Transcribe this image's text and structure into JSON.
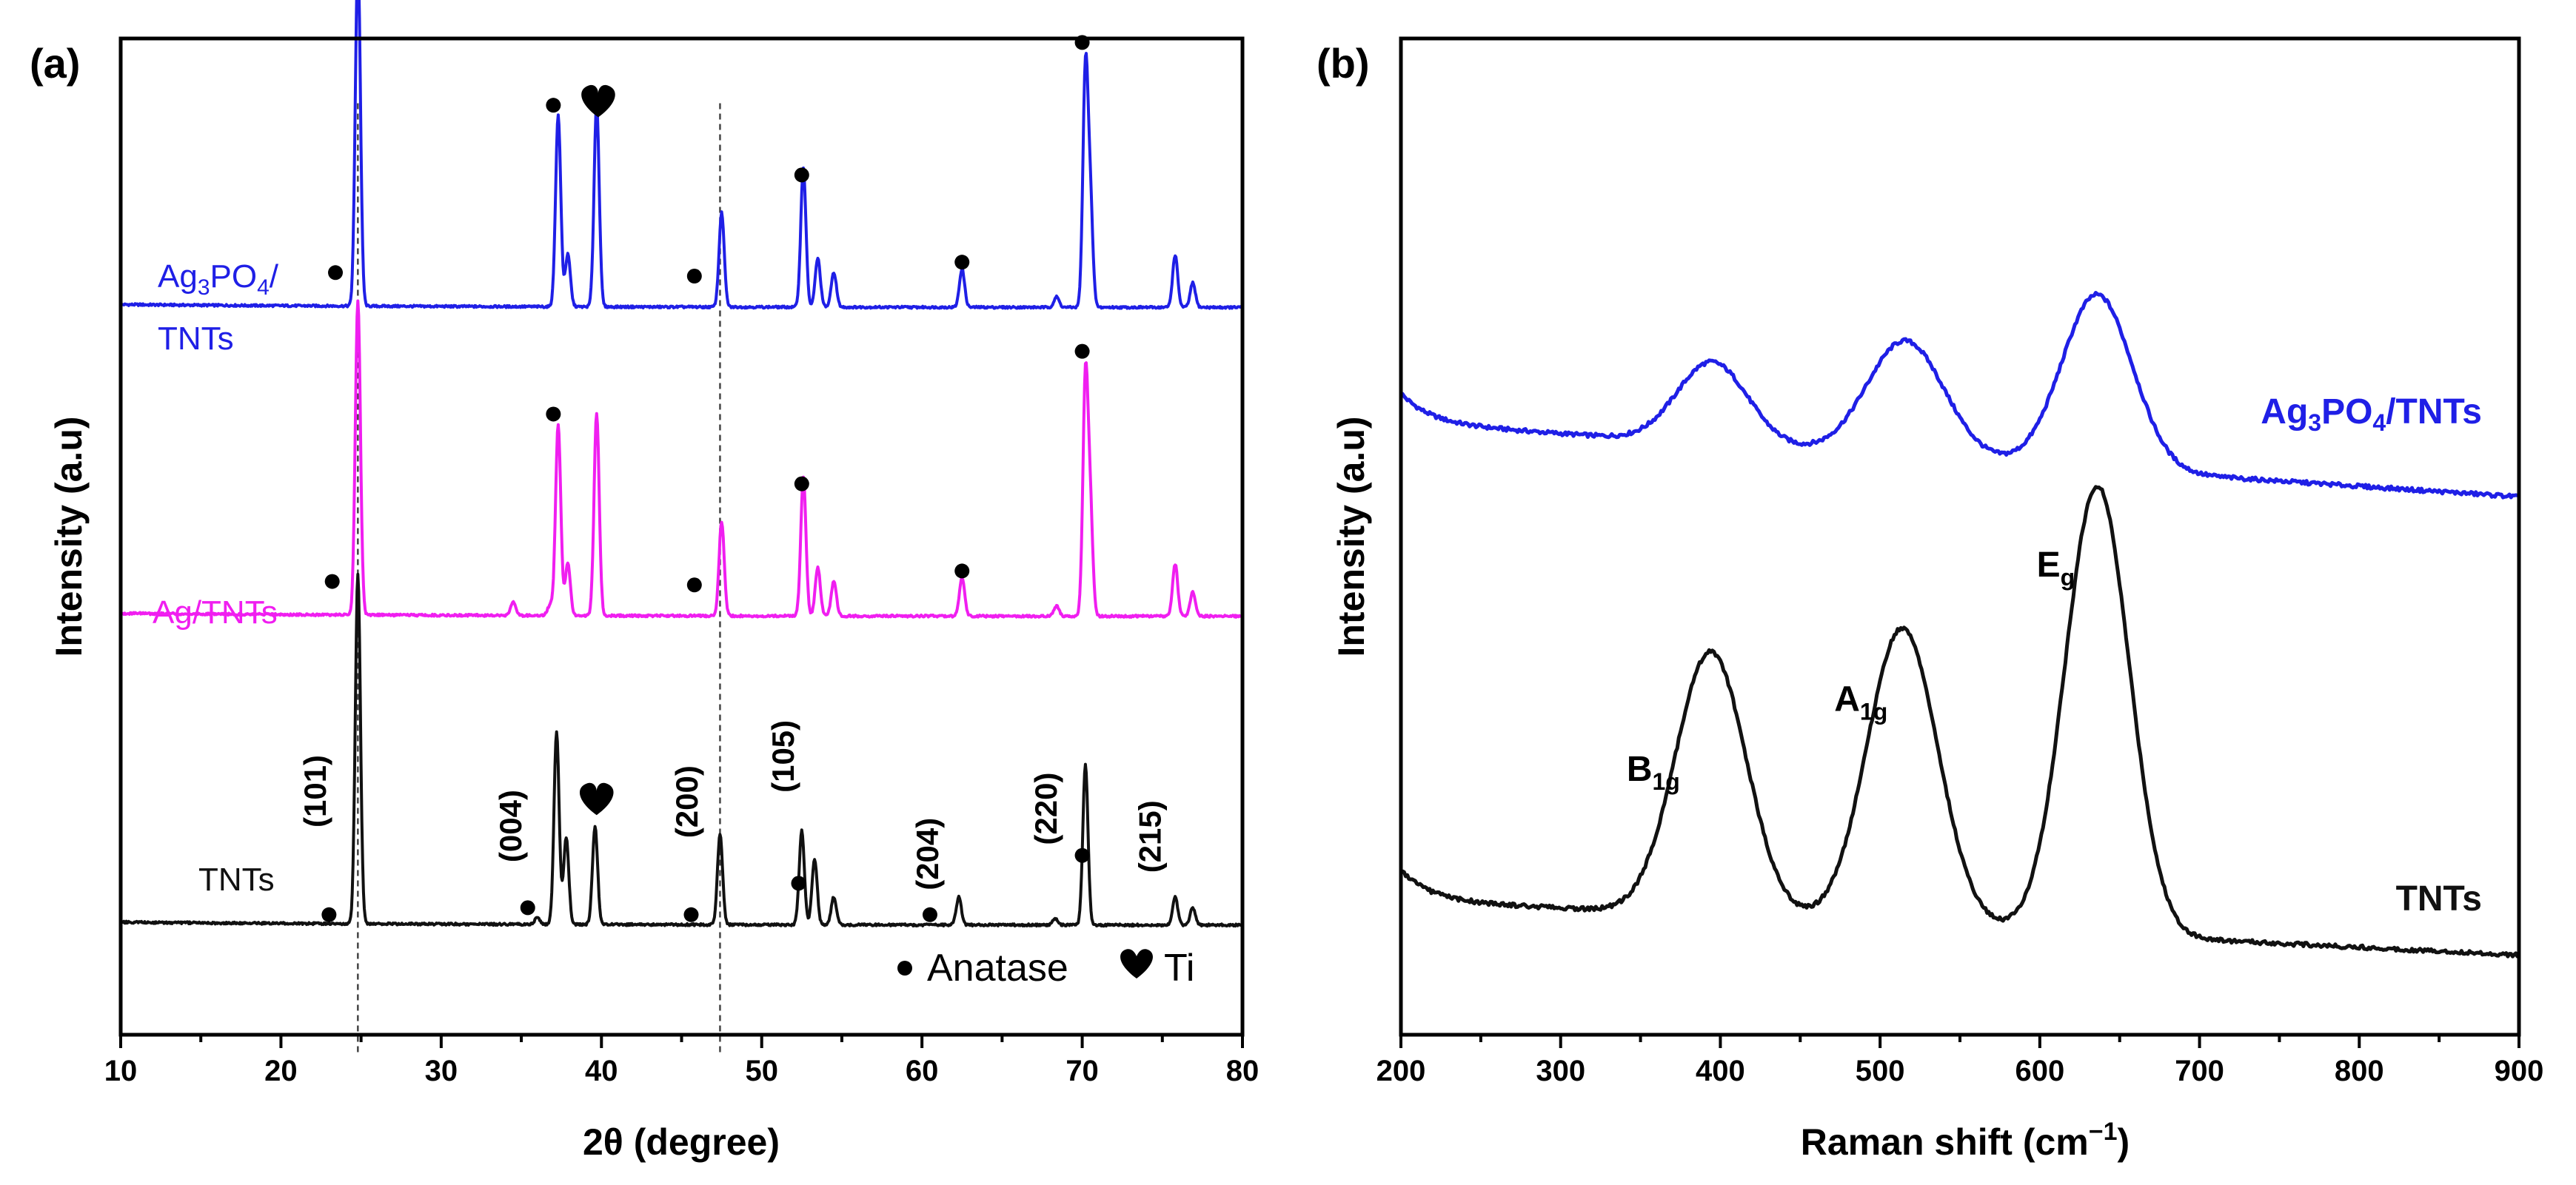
{
  "figure": {
    "background": "#ffffff"
  },
  "chart_data": [
    {
      "id": "a",
      "panel_label": "(a)",
      "type": "line",
      "xlabel": "2θ (degree)",
      "ylabel": "Intensity (a.u)",
      "xlim": [
        10,
        80
      ],
      "xticks": [
        10,
        20,
        30,
        40,
        50,
        60,
        70,
        80
      ],
      "reference_lines_x": [
        24.8,
        47.4
      ],
      "legend": {
        "placement": "bottom-right",
        "anatase_label": "Anatase",
        "ti_label": "Ti"
      },
      "series": [
        {
          "name": "Ag3PO4/TNTs",
          "label_line1": "Ag",
          "label_sub1": "3",
          "label_mid": "PO",
          "label_sub2": "4",
          "label_tail": "/",
          "label_line2": "TNTs",
          "color": "#1f1fe6",
          "offset": 0.73,
          "peaks": [
            [
              24.8,
              1.0
            ],
            [
              37.3,
              0.55
            ],
            [
              37.9,
              0.15
            ],
            [
              39.7,
              0.58
            ],
            [
              47.5,
              0.27
            ],
            [
              52.6,
              0.4
            ],
            [
              53.5,
              0.14
            ],
            [
              54.5,
              0.1
            ],
            [
              62.5,
              0.11
            ],
            [
              68.4,
              0.03
            ],
            [
              70.2,
              0.67
            ],
            [
              70.5,
              0.3
            ],
            [
              75.8,
              0.15
            ],
            [
              76.9,
              0.07
            ]
          ],
          "markers": [
            {
              "type": "anatase",
              "x": 23.4,
              "y": 0.1
            },
            {
              "type": "anatase",
              "x": 37.0,
              "y": 0.58
            },
            {
              "type": "ti",
              "x": 39.8,
              "y": 0.58
            },
            {
              "type": "anatase",
              "x": 45.8,
              "y": 0.09
            },
            {
              "type": "anatase",
              "x": 52.5,
              "y": 0.38
            },
            {
              "type": "anatase",
              "x": 62.5,
              "y": 0.13
            },
            {
              "type": "anatase",
              "x": 70.0,
              "y": 0.76
            }
          ]
        },
        {
          "name": "Ag/TNTs",
          "label": "Ag/TNTs",
          "color": "#f01ef0",
          "offset": 0.42,
          "peaks": [
            [
              24.8,
              0.9
            ],
            [
              34.5,
              0.04
            ],
            [
              36.8,
              0.03
            ],
            [
              37.3,
              0.55
            ],
            [
              37.9,
              0.15
            ],
            [
              39.7,
              0.58
            ],
            [
              47.5,
              0.27
            ],
            [
              52.6,
              0.4
            ],
            [
              53.5,
              0.14
            ],
            [
              54.5,
              0.1
            ],
            [
              62.5,
              0.11
            ],
            [
              68.4,
              0.03
            ],
            [
              70.2,
              0.67
            ],
            [
              70.5,
              0.3
            ],
            [
              75.8,
              0.15
            ],
            [
              76.9,
              0.07
            ]
          ],
          "markers": [
            {
              "type": "anatase",
              "x": 23.2,
              "y": 0.1
            },
            {
              "type": "anatase",
              "x": 37.0,
              "y": 0.58
            },
            {
              "type": "anatase",
              "x": 45.8,
              "y": 0.09
            },
            {
              "type": "anatase",
              "x": 52.5,
              "y": 0.38
            },
            {
              "type": "anatase",
              "x": 62.5,
              "y": 0.13
            },
            {
              "type": "anatase",
              "x": 70.0,
              "y": 0.76
            }
          ]
        },
        {
          "name": "TNTs",
          "label": "TNTs",
          "color": "#111111",
          "offset": 0.11,
          "peaks": [
            [
              24.8,
              1.0
            ],
            [
              36.0,
              0.02
            ],
            [
              37.2,
              0.55
            ],
            [
              37.8,
              0.25
            ],
            [
              39.6,
              0.28
            ],
            [
              47.4,
              0.26
            ],
            [
              52.5,
              0.27
            ],
            [
              53.3,
              0.19
            ],
            [
              54.5,
              0.08
            ],
            [
              62.3,
              0.08
            ],
            [
              68.3,
              0.02
            ],
            [
              70.2,
              0.46
            ],
            [
              75.8,
              0.08
            ],
            [
              76.9,
              0.05
            ]
          ],
          "markers": [
            {
              "type": "anatase",
              "x": 23.0,
              "y": 0.03
            },
            {
              "type": "anatase",
              "x": 35.4,
              "y": 0.05
            },
            {
              "type": "ti",
              "x": 39.7,
              "y": 0.35
            },
            {
              "type": "anatase",
              "x": 45.6,
              "y": 0.03
            },
            {
              "type": "anatase",
              "x": 52.3,
              "y": 0.12
            },
            {
              "type": "anatase",
              "x": 60.5,
              "y": 0.03
            },
            {
              "type": "anatase",
              "x": 70.0,
              "y": 0.2
            }
          ],
          "hkl_labels": [
            {
              "text": "(101)",
              "x": 22.8,
              "y": 0.28
            },
            {
              "text": "(004)",
              "x": 35.0,
              "y": 0.18
            },
            {
              "text": "(200)",
              "x": 46.0,
              "y": 0.25
            },
            {
              "text": "(105)",
              "x": 52.0,
              "y": 0.38
            },
            {
              "text": "(204)",
              "x": 61.0,
              "y": 0.1
            },
            {
              "text": "(220)",
              "x": 68.4,
              "y": 0.23
            },
            {
              "text": "(215)",
              "x": 74.9,
              "y": 0.15
            }
          ]
        }
      ]
    },
    {
      "id": "b",
      "panel_label": "(b)",
      "type": "line",
      "xlabel_main": "Raman shift (cm",
      "xlabel_sup": "−1",
      "xlabel_close": ")",
      "ylabel": "Intensity (a.u)",
      "xlim": [
        200,
        900
      ],
      "xticks": [
        200,
        300,
        400,
        500,
        600,
        700,
        800,
        900
      ],
      "series": [
        {
          "name": "Ag3PO4/TNTs",
          "label_main": "Ag",
          "label_sub1": "3",
          "label_mid": "PO",
          "label_sub2": "4",
          "label_tail": "/TNTs",
          "color": "#1f1fe6",
          "baseline_start": 0.624,
          "baseline_end": 0.55,
          "peaks": [
            [
              395,
              0.082,
              22
            ],
            [
              516,
              0.116,
              24
            ],
            [
              636,
              0.175,
              22
            ]
          ]
        },
        {
          "name": "TNTs",
          "label": "TNTs",
          "color": "#111111",
          "baseline_start": 0.145,
          "baseline_end": 0.09,
          "peaks": [
            [
              394,
              0.265,
              22
            ],
            [
              514,
              0.298,
              22
            ],
            [
              636,
              0.45,
              20
            ]
          ],
          "mode_labels": [
            {
              "main": "B",
              "sub": "1g",
              "x": 358,
              "y": 0.255
            },
            {
              "main": "A",
              "sub": "1g",
              "x": 488,
              "y": 0.325
            },
            {
              "main": "E",
              "sub": "g",
              "x": 610,
              "y": 0.46
            }
          ]
        }
      ]
    }
  ]
}
